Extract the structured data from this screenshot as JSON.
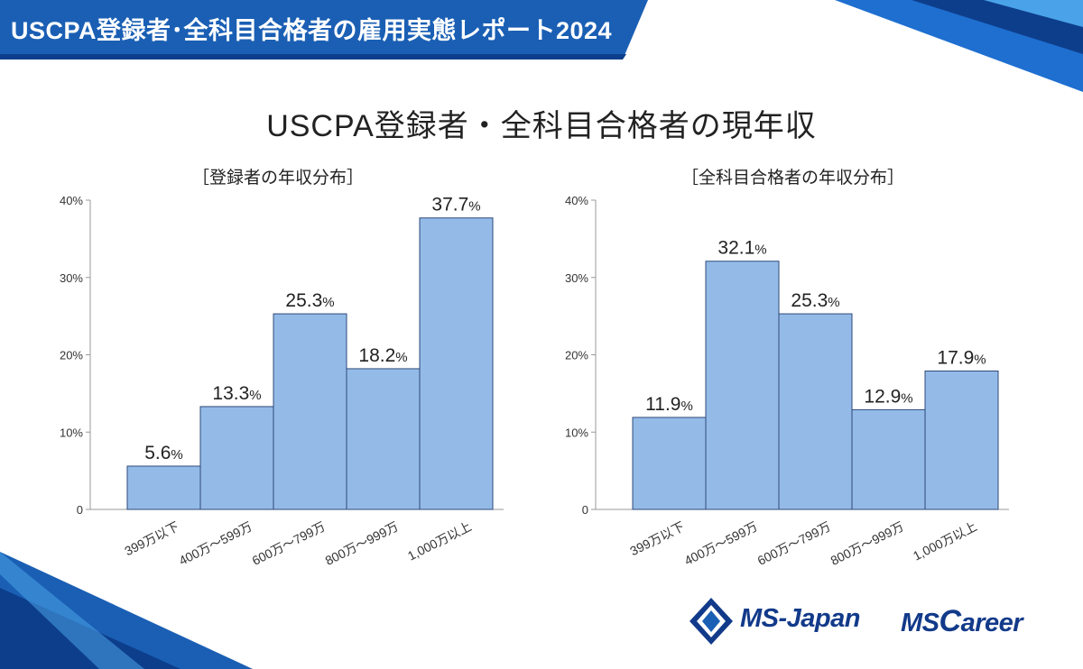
{
  "header": {
    "banner_title": "USCPA登録者･全科目合格者の雇用実態レポート2024",
    "main_title": "USCPA登録者・全科目合格者の現年収"
  },
  "colors": {
    "bar_fill": "#94bbe8",
    "bar_stroke": "#2e4a7a",
    "banner": "#1a5fb4",
    "banner_dark": "#0d3e8c",
    "logo": "#123a8a"
  },
  "logos": {
    "ms_japan": "MS-Japan",
    "ms_career_prefix": "MS",
    "ms_career_c": "C",
    "ms_career_rest": "areer"
  },
  "chart_data": [
    {
      "type": "bar",
      "title": "［登録者の年収分布］",
      "categories": [
        "399万以下",
        "400万～599万",
        "600万～799万",
        "800万～999万",
        "1,000万以上"
      ],
      "values": [
        5.6,
        13.3,
        25.3,
        18.2,
        37.7
      ],
      "value_labels": [
        "5.6",
        "13.3",
        "25.3",
        "18.2",
        "37.7"
      ],
      "unit": "%",
      "yticks": [
        "0",
        "10%",
        "20%",
        "30%",
        "40%"
      ],
      "ylim": [
        0,
        40
      ]
    },
    {
      "type": "bar",
      "title": "［全科目合格者の年収分布］",
      "categories": [
        "399万以下",
        "400万～599万",
        "600万～799万",
        "800万～999万",
        "1,000万以上"
      ],
      "values": [
        11.9,
        32.1,
        25.3,
        12.9,
        17.9
      ],
      "value_labels": [
        "11.9",
        "32.1",
        "25.3",
        "12.9",
        "17.9"
      ],
      "unit": "%",
      "yticks": [
        "0",
        "10%",
        "20%",
        "30%",
        "40%"
      ],
      "ylim": [
        0,
        40
      ]
    }
  ]
}
